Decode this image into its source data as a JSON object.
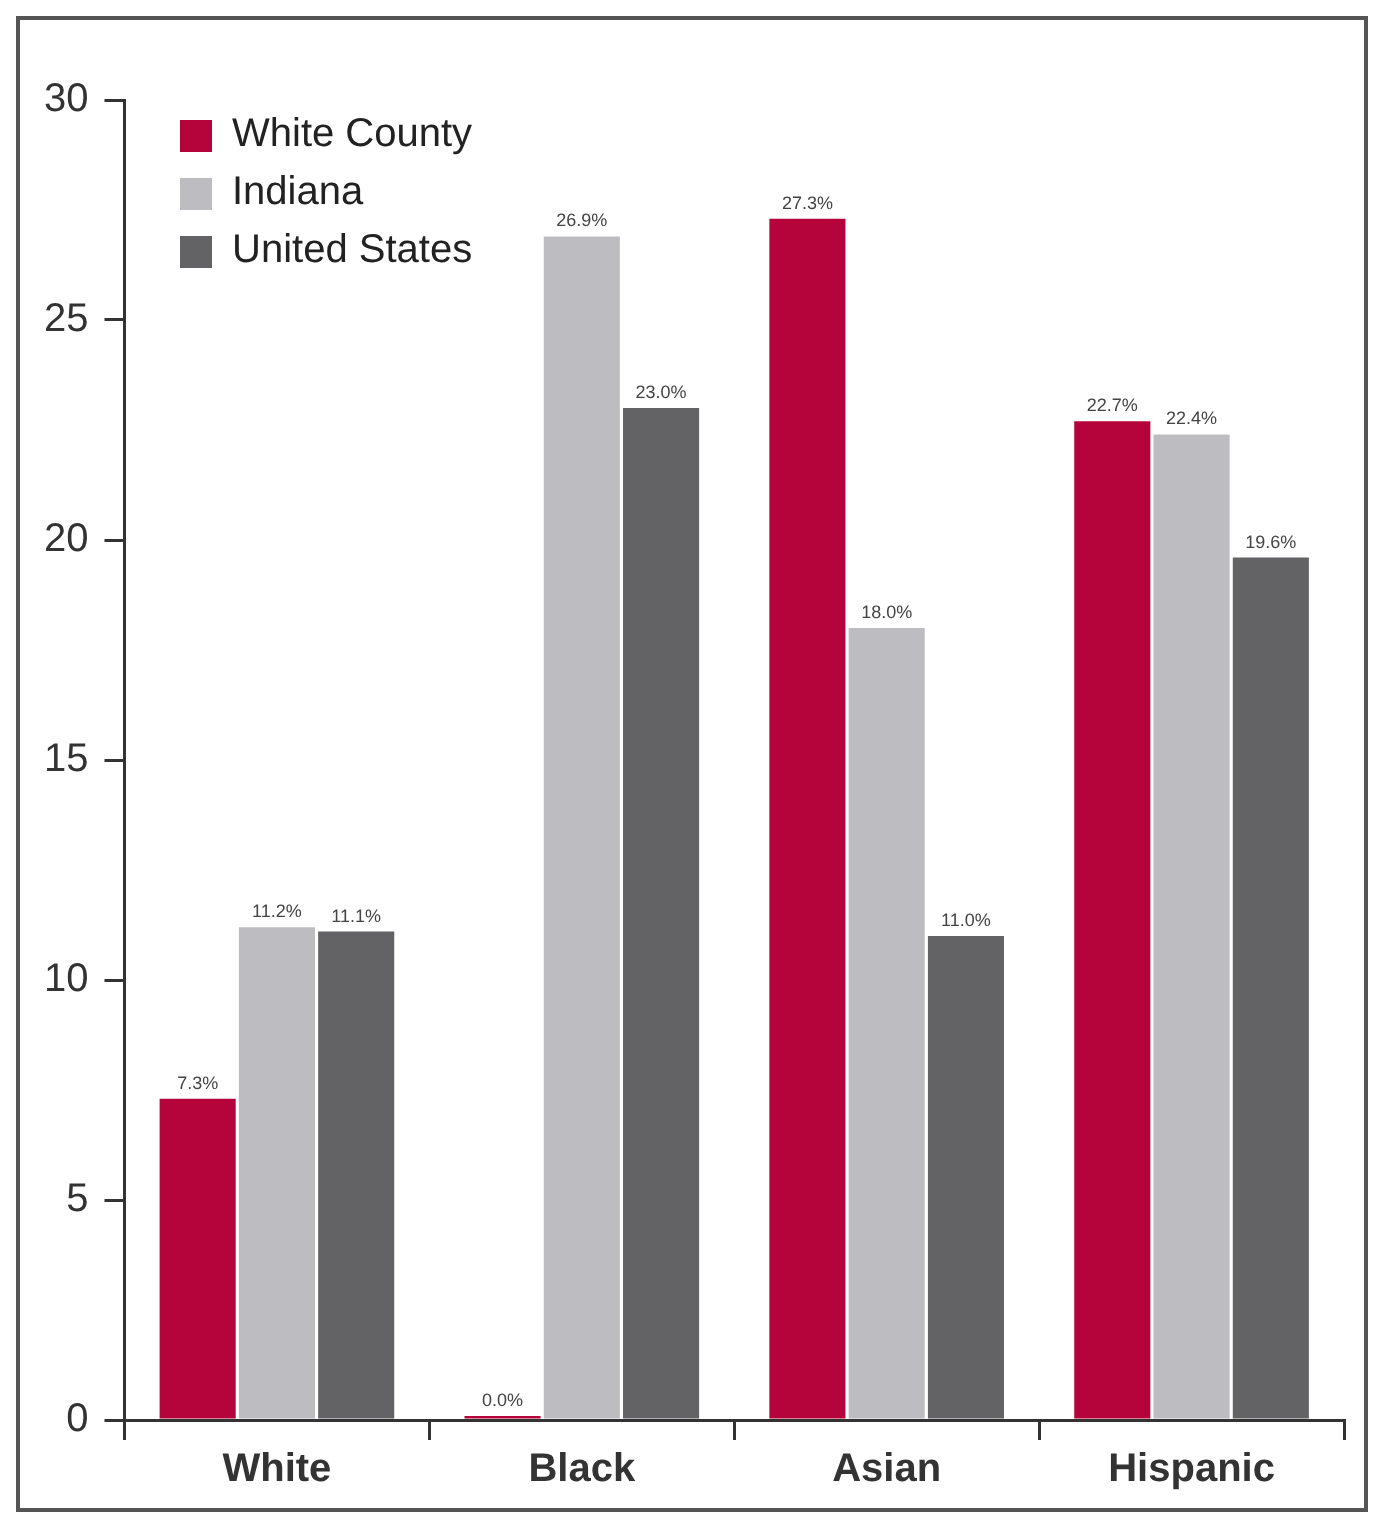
{
  "chart_data": {
    "type": "bar",
    "categories": [
      "White",
      "Black",
      "Asian",
      "Hispanic"
    ],
    "series": [
      {
        "name": "White County",
        "color": "#b5033b",
        "values": [
          7.3,
          0.0,
          27.3,
          22.7
        ],
        "value_labels": [
          "7.3%",
          "0.0%",
          "27.3%",
          "22.7%"
        ]
      },
      {
        "name": "Indiana",
        "color": "#bdbdc1",
        "values": [
          11.2,
          26.9,
          18.0,
          22.4
        ],
        "value_labels": [
          "11.2%",
          "26.9%",
          "18.0%",
          "22.4%"
        ]
      },
      {
        "name": "United States",
        "color": "#636366",
        "values": [
          11.1,
          23.0,
          11.0,
          19.6
        ],
        "value_labels": [
          "11.1%",
          "23.0%",
          "11.0%",
          "19.6%"
        ]
      }
    ],
    "ylim": [
      0,
      30
    ],
    "yticks": [
      0,
      5,
      10,
      15,
      20,
      25,
      30
    ],
    "grid": false,
    "legend": "top left"
  }
}
